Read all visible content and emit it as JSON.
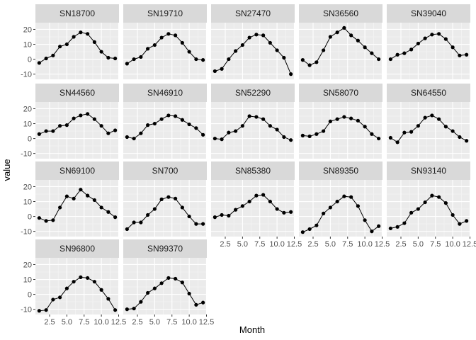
{
  "chart_data": {
    "type": "line",
    "facet": "wrap",
    "ncol": 5,
    "xlabel": "Month",
    "ylabel": "value",
    "x": [
      1,
      2,
      3,
      4,
      5,
      6,
      7,
      8,
      9,
      10,
      11,
      12
    ],
    "xlim": [
      0.45,
      12.55
    ],
    "ylim": [
      -13.5,
      24.5
    ],
    "x_ticks": [
      2.5,
      5.0,
      7.5,
      10.0,
      12.5
    ],
    "x_tick_labels": [
      "2.5",
      "5.0",
      "7.5",
      "10.0",
      "12.5"
    ],
    "y_ticks": [
      -10,
      0,
      10,
      20
    ],
    "y_tick_labels": [
      "-10",
      "0",
      "10",
      "20"
    ],
    "grid": true,
    "colors": {
      "panel_bg": "#ebebeb",
      "strip_bg": "#d9d9d9",
      "grid_major": "#ffffff",
      "grid_minor": "#f5f5f5",
      "line": "#000000",
      "point": "#000000"
    },
    "series": [
      {
        "name": "SN18700",
        "values": [
          -2.5,
          0.5,
          2.5,
          8.5,
          10,
          15,
          18,
          17,
          11.5,
          5,
          1,
          0.5
        ]
      },
      {
        "name": "SN19710",
        "values": [
          -3,
          0,
          1.5,
          7,
          9.5,
          14.5,
          17,
          16,
          11,
          5,
          0,
          -0.5
        ]
      },
      {
        "name": "SN27470",
        "values": [
          -8,
          -6.5,
          0,
          5.5,
          9.5,
          14.5,
          16.5,
          16,
          11,
          6,
          1,
          -10
        ]
      },
      {
        "name": "SN36560",
        "values": [
          -0.5,
          -4,
          -2,
          6,
          15,
          18,
          21,
          16,
          12.5,
          8,
          4,
          0
        ]
      },
      {
        "name": "SN39040",
        "values": [
          0,
          3,
          4,
          6.5,
          10.5,
          14,
          16.5,
          17,
          13.5,
          8,
          2.5,
          3
        ]
      },
      {
        "name": "SN44560",
        "values": [
          3,
          5,
          5,
          8.5,
          9,
          13.5,
          15.5,
          16.5,
          13,
          8.5,
          3.5,
          5.5
        ]
      },
      {
        "name": "SN46910",
        "values": [
          1,
          0,
          3.5,
          9,
          10,
          13,
          15.5,
          15,
          12.5,
          9.5,
          7,
          2.5
        ]
      },
      {
        "name": "SN52290",
        "values": [
          0,
          -0.5,
          4,
          5,
          8.5,
          15,
          14.5,
          13,
          8.5,
          6,
          1,
          -1
        ]
      },
      {
        "name": "SN58070",
        "values": [
          2,
          1.5,
          3,
          5,
          11.5,
          13,
          14.5,
          13.5,
          12,
          8,
          3,
          0
        ]
      },
      {
        "name": "SN64550",
        "values": [
          0.5,
          -2.5,
          4,
          4.5,
          8.5,
          14,
          15.5,
          13,
          8,
          5,
          1,
          -1.5
        ]
      },
      {
        "name": "SN69100",
        "values": [
          -1,
          -3,
          -2.5,
          6,
          13.5,
          12,
          18,
          14,
          11,
          6,
          3,
          -0.5
        ]
      },
      {
        "name": "SN700",
        "values": [
          -8.5,
          -4,
          -4,
          1,
          5,
          11.5,
          13,
          12,
          6,
          0,
          -5,
          -5
        ]
      },
      {
        "name": "SN85380",
        "values": [
          -0.5,
          1,
          0.5,
          4.5,
          7,
          10,
          14,
          14.5,
          10,
          5,
          2.5,
          3
        ]
      },
      {
        "name": "SN89350",
        "values": [
          -10.5,
          -8.5,
          -6,
          2,
          6,
          10,
          13.5,
          13,
          7,
          -2.5,
          -10,
          -6.5
        ]
      },
      {
        "name": "SN93140",
        "values": [
          -8,
          -7,
          -4.5,
          2.5,
          5,
          9.5,
          14,
          13,
          9,
          1,
          -5,
          -3
        ]
      },
      {
        "name": "SN96800",
        "values": [
          -11,
          -10.5,
          -3.5,
          -2,
          4,
          8.5,
          11.5,
          11,
          8.5,
          3,
          -3,
          -10.5
        ]
      },
      {
        "name": "SN99370",
        "values": [
          -10,
          -9.5,
          -5,
          1,
          4,
          7.5,
          11,
          10.5,
          8,
          0.5,
          -7,
          -5.5
        ]
      }
    ]
  }
}
